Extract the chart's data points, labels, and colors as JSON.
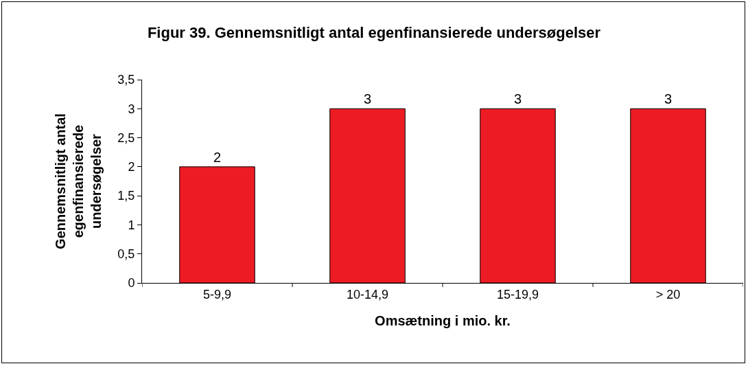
{
  "chart_data": {
    "type": "bar",
    "title": "Figur 39. Gennemsnitligt antal egenfinansierede undersøgelser",
    "xlabel": "Omsætning i mio. kr.",
    "ylabel": "Gennemsnitligt antal\negenfinansierede\nundersøgelser",
    "categories": [
      "5-9,9",
      "10-14,9",
      "15-19,9",
      "> 20"
    ],
    "values": [
      2,
      3,
      3,
      3
    ],
    "color": "#ed1c24",
    "ylim": [
      0,
      3.5
    ],
    "yticks": [
      0,
      {
        "value": 0.5,
        "label": "0,5"
      },
      1,
      {
        "value": 1.5,
        "label": "1,5"
      },
      2,
      {
        "value": 2.5,
        "label": "2,5"
      },
      3,
      {
        "value": 3.5,
        "label": "3,5"
      }
    ],
    "data_labels": true,
    "grid": false
  }
}
